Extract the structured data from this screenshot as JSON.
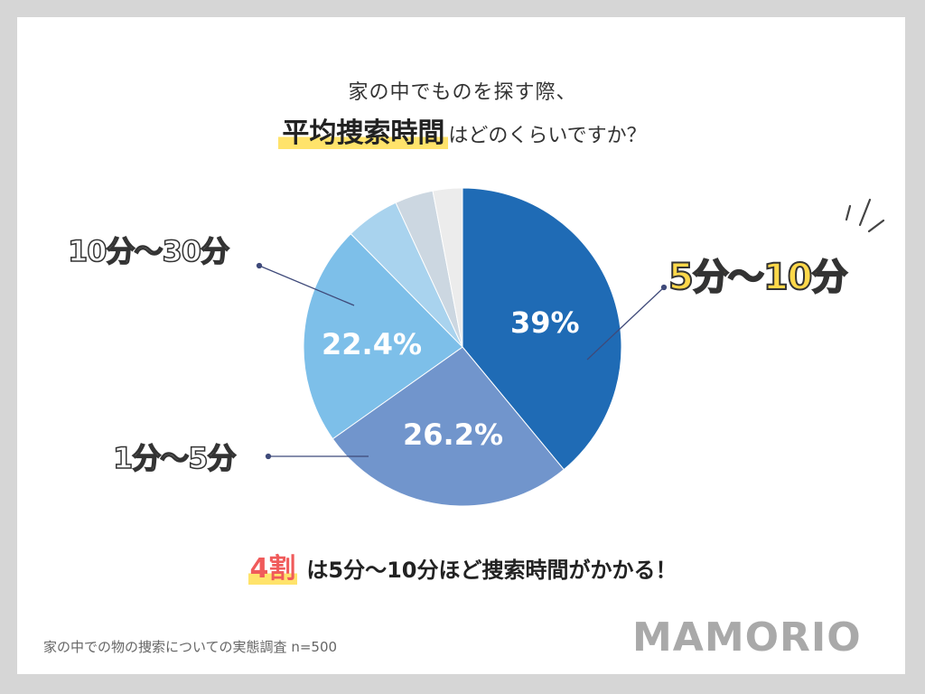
{
  "title_line1": "家の中でものを探す際、",
  "title_highlight": "平均捜索時間",
  "title_line2_rest": "はどのくらいですか？",
  "conclusion_highlight": "4割",
  "conclusion_text": "は5分〜10分ほど捜索時間がかかる！",
  "source": "家の中での物の捜索についての実態調査 n=500",
  "logo": "MAMORIO",
  "chart_data": {
    "type": "pie",
    "slices": [
      {
        "label": "5分〜10分",
        "value": 39,
        "value_label": "39%",
        "color": "#1f6bb5"
      },
      {
        "label": "1分〜5分",
        "value": 26.2,
        "value_label": "26.2%",
        "color": "#7195cc"
      },
      {
        "label": "10分〜30分",
        "value": 22.4,
        "value_label": "22.4%",
        "color": "#7dbfe9"
      },
      {
        "label": "",
        "value": 5.5,
        "color": "#a9d3ee"
      },
      {
        "label": "",
        "value": 3.9,
        "color": "#ccd7e1"
      },
      {
        "label": "",
        "value": 3.0,
        "color": "#ececec"
      }
    ]
  }
}
